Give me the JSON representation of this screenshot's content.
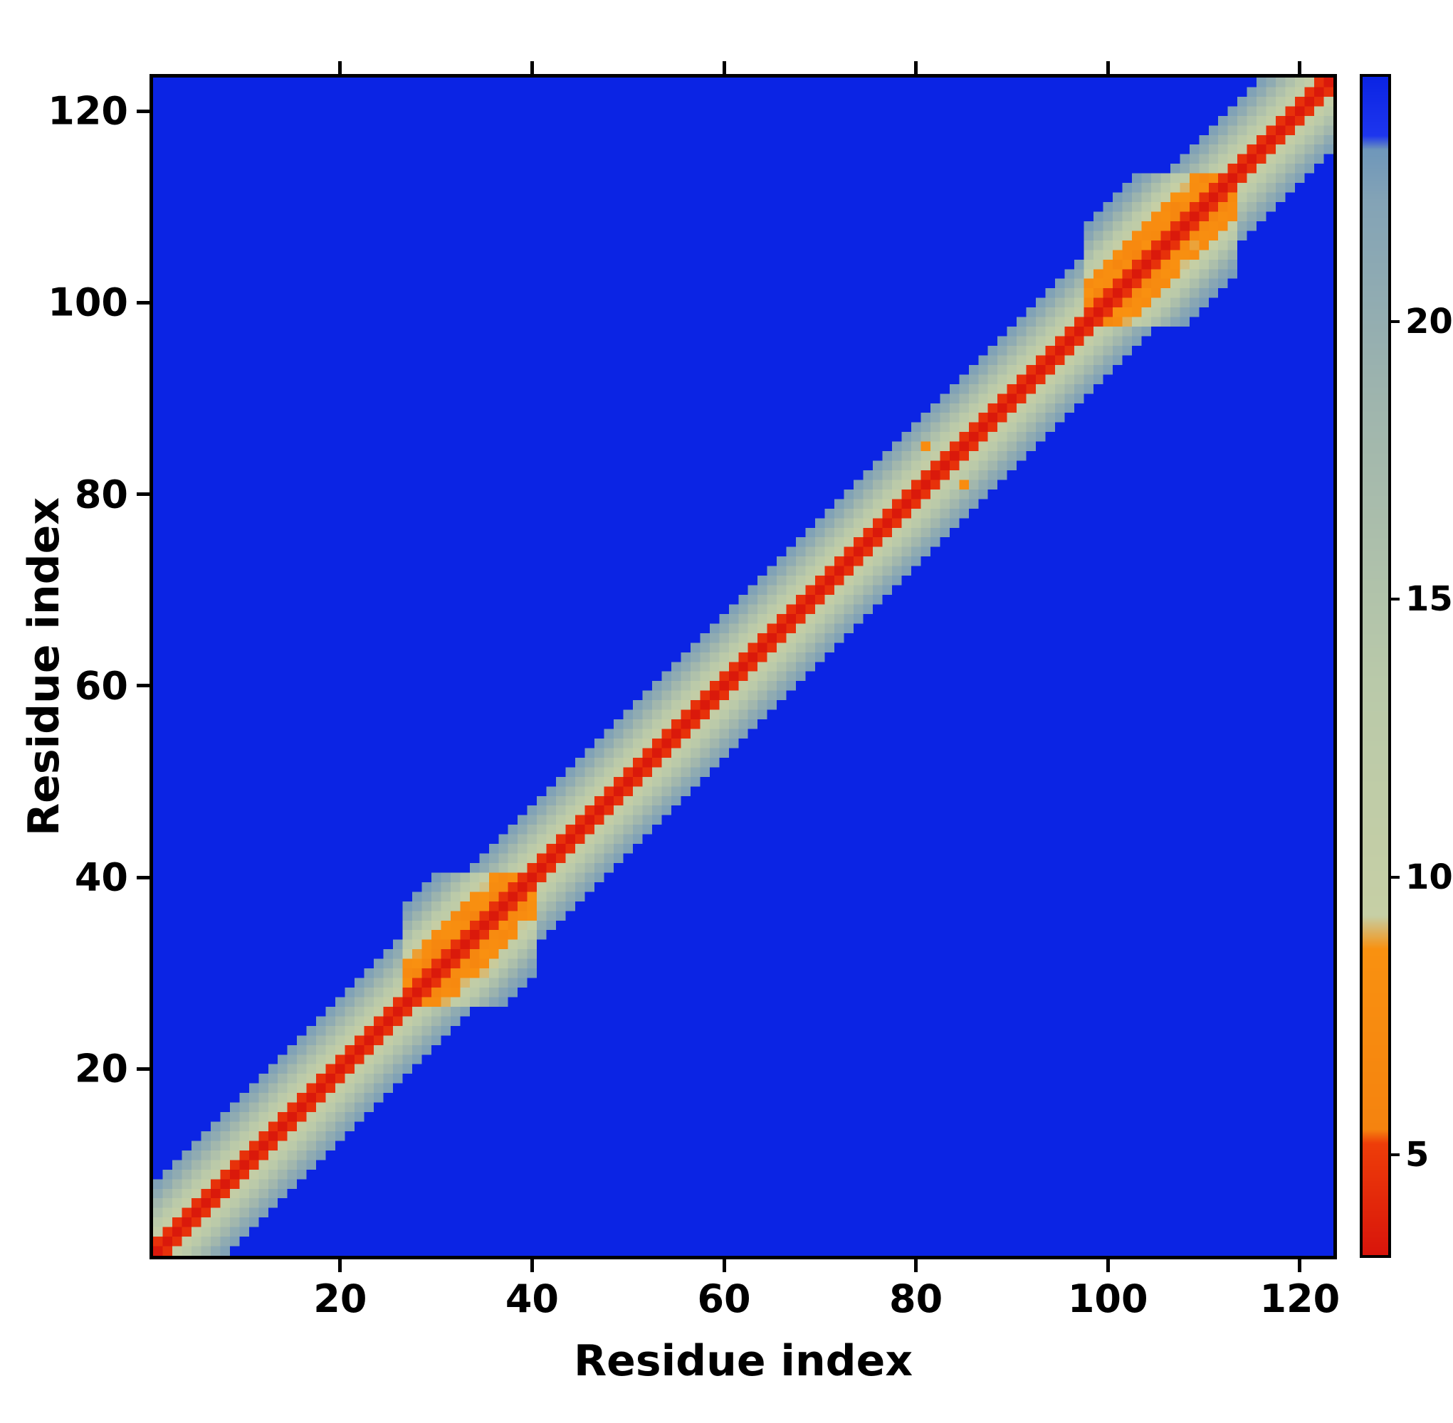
{
  "chart_data": {
    "type": "heatmap",
    "title": "",
    "xlabel": "Residue index",
    "ylabel": "Residue index",
    "n_residues": 123,
    "x_range": [
      1,
      123
    ],
    "y_range": [
      1,
      123
    ],
    "x_ticks": [
      20,
      40,
      60,
      80,
      100,
      120
    ],
    "y_ticks": [
      20,
      40,
      60,
      80,
      100,
      120
    ],
    "y_axis_direction": "up",
    "grid": false,
    "legend": "none",
    "colorbar": {
      "position": "right",
      "ticks": [
        5,
        10,
        15,
        20
      ],
      "vmin": 3.2,
      "vmax": 24.4
    },
    "colormap_stops": [
      [
        3.2,
        "#d8150b"
      ],
      [
        5.2,
        "#ee3d09"
      ],
      [
        5.45,
        "#f5830f"
      ],
      [
        8.7,
        "#f99110"
      ],
      [
        9.3,
        "#c6cfa5"
      ],
      [
        13.5,
        "#b9c9a9"
      ],
      [
        18.5,
        "#9fb5ad"
      ],
      [
        22.2,
        "#83a3b6"
      ],
      [
        23.1,
        "#6f97ba"
      ],
      [
        23.35,
        "#1e36ee"
      ],
      [
        24.4,
        "#0b24e4"
      ]
    ],
    "matrix_model": "pairwise residue distance, value depends on sequence separation |i-j|; banded diagonal matrix, off-band cells are background (blue)",
    "band_profile": [
      3.4,
      4.6,
      10.4,
      13.0,
      15.5,
      18.0,
      20.6,
      22.3
    ],
    "helix_band_profile": [
      3.4,
      4.6,
      7.2,
      7.6,
      8.1,
      10.4,
      13.0,
      16.0,
      19.0,
      21.5,
      22.6
    ],
    "helix_regions": [
      [
        27,
        40
      ],
      [
        98,
        113
      ]
    ],
    "helix_jitter": 1.3,
    "jitter_offsets_min": 2,
    "jitter_offsets_max": 5,
    "extra_contacts": [
      [
        81,
        85
      ],
      [
        85,
        81
      ]
    ],
    "contact_value": 7.5,
    "background_value": 25.0,
    "seed": 42,
    "background_color": "#0b24e4"
  }
}
